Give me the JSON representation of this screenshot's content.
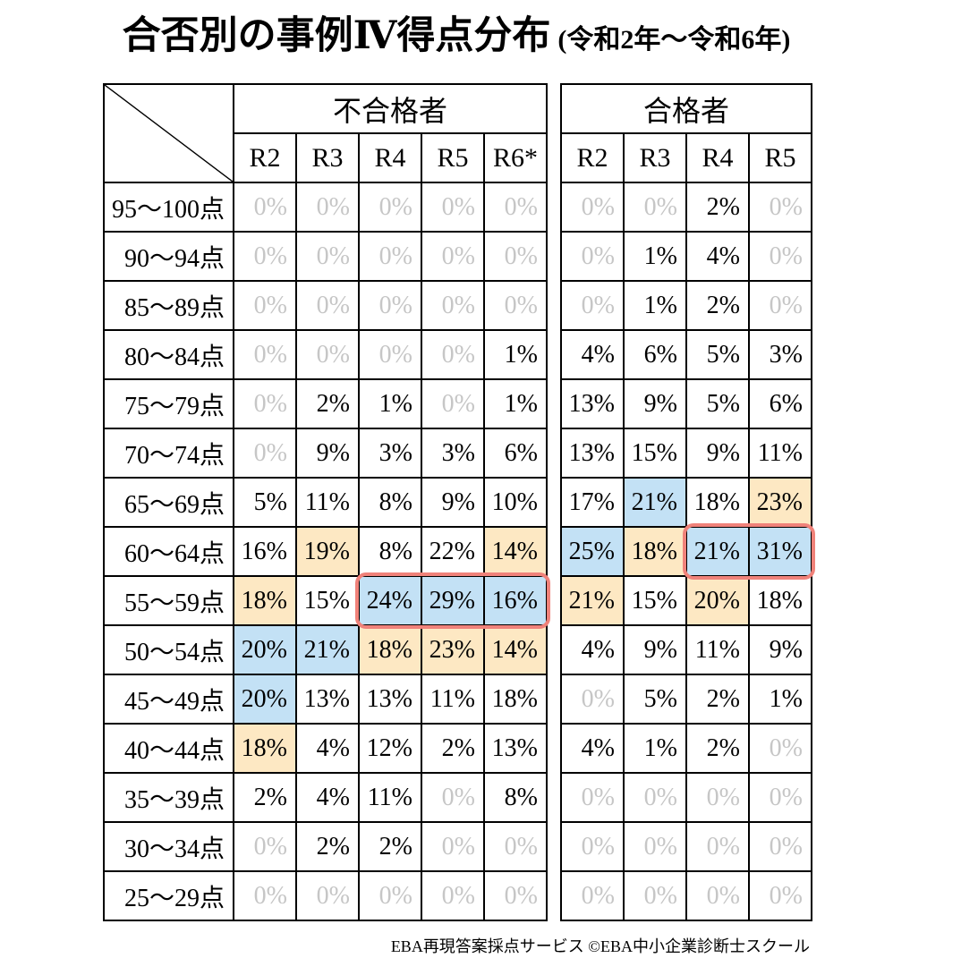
{
  "title": {
    "main": "合否別の事例Ⅳ得点分布",
    "sub": "(令和2年～令和6年)"
  },
  "footer": "EBA再現答案採点サービス ©EBA中小企業診断士スクール",
  "colors": {
    "highlight_orange": "#fde8c3",
    "highlight_blue": "#c3e1f5",
    "zero_gray": "#c6c6c6",
    "outline_red": "#f0827a",
    "border_black": "#000000"
  },
  "style_codes": {
    "g": "gray-zero-value",
    "o": "orange-highlight",
    "b": "blue-highlight"
  },
  "chart_data": {
    "type": "table",
    "title": "合否別の事例Ⅳ得点分布（令和2年～令和6年）",
    "row_labels": [
      "95～100点",
      "90～94点",
      "85～89点",
      "80～84点",
      "75～79点",
      "70～74点",
      "65～69点",
      "60～64点",
      "55～59点",
      "50～54点",
      "45～49点",
      "40～44点",
      "35～39点",
      "30～34点",
      "25～29点"
    ],
    "groups": [
      {
        "name": "不合格者",
        "columns": [
          "R2",
          "R3",
          "R4",
          "R5",
          "R6*"
        ],
        "rows": [
          [
            "0%|g",
            "0%|g",
            "0%|g",
            "0%|g",
            "0%|g"
          ],
          [
            "0%|g",
            "0%|g",
            "0%|g",
            "0%|g",
            "0%|g"
          ],
          [
            "0%|g",
            "0%|g",
            "0%|g",
            "0%|g",
            "0%|g"
          ],
          [
            "0%|g",
            "0%|g",
            "0%|g",
            "0%|g",
            "1%"
          ],
          [
            "0%|g",
            "2%",
            "1%",
            "0%|g",
            "1%"
          ],
          [
            "0%|g",
            "9%",
            "3%",
            "3%",
            "6%"
          ],
          [
            "5%",
            "11%",
            "8%",
            "9%",
            "10%"
          ],
          [
            "16%",
            "19%|o",
            "8%",
            "22%",
            "14%|o"
          ],
          [
            "18%|o",
            "15%",
            "24%|b",
            "29%|b",
            "16%|b"
          ],
          [
            "20%|b",
            "21%|b",
            "18%|o",
            "23%|o",
            "14%|o"
          ],
          [
            "20%|b",
            "13%",
            "13%",
            "11%",
            "18%"
          ],
          [
            "18%|o",
            "4%",
            "12%",
            "2%",
            "13%"
          ],
          [
            "2%",
            "4%",
            "11%",
            "0%|g",
            "8%"
          ],
          [
            "0%|g",
            "2%",
            "2%",
            "0%|g",
            "0%|g"
          ],
          [
            "0%|g",
            "0%|g",
            "0%|g",
            "0%|g",
            "0%|g"
          ]
        ]
      },
      {
        "name": "合格者",
        "columns": [
          "R2",
          "R3",
          "R4",
          "R5"
        ],
        "rows": [
          [
            "0%|g",
            "0%|g",
            "2%",
            "0%|g"
          ],
          [
            "0%|g",
            "1%",
            "4%",
            "0%|g"
          ],
          [
            "0%|g",
            "1%",
            "2%",
            "0%|g"
          ],
          [
            "4%",
            "6%",
            "5%",
            "3%"
          ],
          [
            "13%",
            "9%",
            "5%",
            "6%"
          ],
          [
            "13%",
            "15%",
            "9%",
            "11%"
          ],
          [
            "17%",
            "21%|b",
            "18%",
            "23%|o"
          ],
          [
            "25%|b",
            "18%|o",
            "21%|b",
            "31%|b"
          ],
          [
            "21%|o",
            "15%",
            "20%|o",
            "18%"
          ],
          [
            "4%",
            "9%",
            "11%",
            "9%"
          ],
          [
            "0%|g",
            "5%",
            "2%",
            "1%"
          ],
          [
            "4%",
            "1%",
            "2%",
            "0%|g"
          ],
          [
            "0%|g",
            "0%|g",
            "0%|g",
            "0%|g"
          ],
          [
            "0%|g",
            "0%|g",
            "0%|g",
            "0%|g"
          ],
          [
            "0%|g",
            "0%|g",
            "0%|g",
            "0%|g"
          ]
        ]
      }
    ],
    "red_outlines": [
      {
        "group": 0,
        "row": 8,
        "col_start": 2,
        "col_end": 4
      },
      {
        "group": 1,
        "row": 7,
        "col_start": 2,
        "col_end": 3
      }
    ]
  }
}
